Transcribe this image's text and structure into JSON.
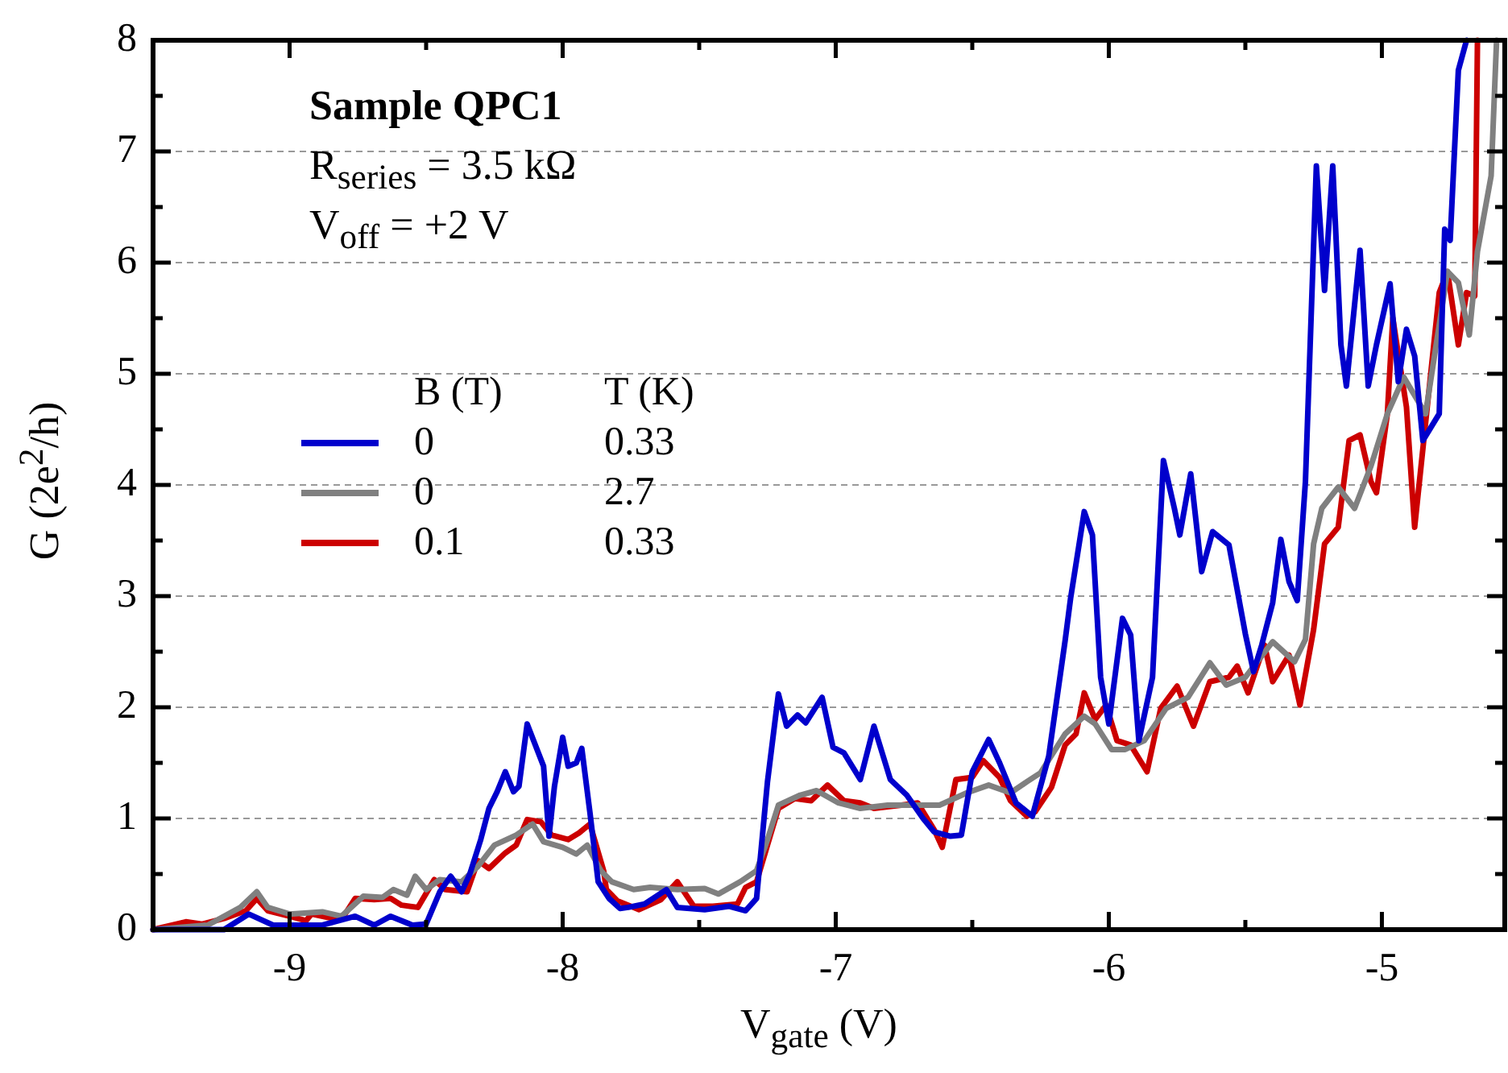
{
  "chart_data": {
    "type": "line",
    "xlabel": "V$_{gate}$ (V)",
    "ylabel": "G (2e$^{2}$/h)",
    "legend_title": "B (T)\tT (K)",
    "legend": "left",
    "grid": "y",
    "marker": "none",
    "line_style": "solid",
    "annotations": [
      "Sample QPC1",
      "R$_{series}$ = 3.5 kΩ",
      "V$_{off}$ = +2 V"
    ],
    "xlim": [
      -9.5,
      -4.55
    ],
    "ylim": [
      0,
      8
    ],
    "xticks": [
      {
        "value": -9.5,
        "label": null
      },
      -9,
      {
        "value": -8.5,
        "label": null
      },
      -8,
      {
        "value": -7.5,
        "label": null
      },
      -7,
      {
        "value": -6.5,
        "label": null
      },
      -6,
      {
        "value": -5.5,
        "label": null
      },
      -5
    ],
    "yticks": [
      0,
      {
        "value": 0.5,
        "label": null
      },
      1,
      {
        "value": 1.5,
        "label": null
      },
      2,
      {
        "value": 2.5,
        "label": null
      },
      3,
      {
        "value": 3.5,
        "label": null
      },
      4,
      {
        "value": 4.5,
        "label": null
      },
      5,
      {
        "value": 5.5,
        "label": null
      },
      6,
      {
        "value": 6.5,
        "label": null
      },
      7,
      {
        "value": 7.5,
        "label": null
      },
      8
    ],
    "series": [
      {
        "name": "0\t0.33",
        "color": "#0000cc",
        "x": [
          -9.5,
          -9.24,
          -9.15,
          -9.06,
          -8.88,
          -8.76,
          -8.69,
          -8.63,
          -8.55,
          -8.5,
          -8.45,
          -8.41,
          -8.37,
          -8.34,
          -8.3,
          -8.27,
          -8.24,
          -8.21,
          -8.18,
          -8.16,
          -8.13,
          -8.1,
          -8.07,
          -8.05,
          -8.03,
          -8.0,
          -7.98,
          -7.95,
          -7.93,
          -7.9,
          -7.87,
          -7.83,
          -7.79,
          -7.76,
          -7.7,
          -7.62,
          -7.58,
          -7.48,
          -7.39,
          -7.33,
          -7.29,
          -7.25,
          -7.21,
          -7.18,
          -7.14,
          -7.11,
          -7.05,
          -7.01,
          -6.97,
          -6.91,
          -6.86,
          -6.8,
          -6.74,
          -6.68,
          -6.64,
          -6.58,
          -6.54,
          -6.5,
          -6.44,
          -6.4,
          -6.34,
          -6.28,
          -6.22,
          -6.16,
          -6.14,
          -6.09,
          -6.06,
          -6.03,
          -6.0,
          -5.95,
          -5.92,
          -5.89,
          -5.84,
          -5.8,
          -5.76,
          -5.74,
          -5.7,
          -5.66,
          -5.62,
          -5.56,
          -5.5,
          -5.47,
          -5.44,
          -5.4,
          -5.37,
          -5.34,
          -5.31,
          -5.28,
          -5.24,
          -5.21,
          -5.18,
          -5.15,
          -5.13,
          -5.08,
          -5.05,
          -5.02,
          -4.97,
          -4.94,
          -4.91,
          -4.88,
          -4.85,
          -4.79,
          -4.77,
          -4.75,
          -4.72,
          -4.69
        ],
        "values": [
          0,
          0,
          0.14,
          0.04,
          0.04,
          0.12,
          0.04,
          0.12,
          0.04,
          0.05,
          0.34,
          0.48,
          0.34,
          0.5,
          0.81,
          1.09,
          1.24,
          1.42,
          1.24,
          1.29,
          1.85,
          1.66,
          1.47,
          0.84,
          1.29,
          1.73,
          1.47,
          1.5,
          1.63,
          1.05,
          0.43,
          0.28,
          0.19,
          0.2,
          0.23,
          0.36,
          0.2,
          0.18,
          0.21,
          0.17,
          0.28,
          1.33,
          2.12,
          1.83,
          1.93,
          1.86,
          2.09,
          1.64,
          1.59,
          1.35,
          1.83,
          1.35,
          1.21,
          1.0,
          0.88,
          0.84,
          0.85,
          1.42,
          1.71,
          1.5,
          1.14,
          1.02,
          1.56,
          2.6,
          2.98,
          3.76,
          3.55,
          2.27,
          1.85,
          2.8,
          2.65,
          1.7,
          2.27,
          4.22,
          3.79,
          3.55,
          4.1,
          3.22,
          3.58,
          3.46,
          2.66,
          2.32,
          2.56,
          2.94,
          3.51,
          3.13,
          2.96,
          4.03,
          6.87,
          5.75,
          6.87,
          5.26,
          4.89,
          6.11,
          4.89,
          5.26,
          5.81,
          4.93,
          5.4,
          5.16,
          4.4,
          4.64,
          6.3,
          6.2,
          7.73,
          8.0
        ]
      },
      {
        "name": "0\t2.7",
        "color": "#808080",
        "x": [
          -9.5,
          -9.3,
          -9.18,
          -9.12,
          -9.08,
          -9.0,
          -8.88,
          -8.81,
          -8.73,
          -8.66,
          -8.62,
          -8.57,
          -8.54,
          -8.5,
          -8.45,
          -8.37,
          -8.31,
          -8.25,
          -8.17,
          -8.11,
          -8.07,
          -8.0,
          -7.95,
          -7.91,
          -7.86,
          -7.82,
          -7.74,
          -7.68,
          -7.58,
          -7.48,
          -7.43,
          -7.35,
          -7.29,
          -7.25,
          -7.21,
          -7.13,
          -7.07,
          -6.99,
          -6.91,
          -6.81,
          -6.7,
          -6.62,
          -6.52,
          -6.44,
          -6.36,
          -6.3,
          -6.25,
          -6.16,
          -6.09,
          -6.05,
          -5.99,
          -5.94,
          -5.87,
          -5.79,
          -5.71,
          -5.63,
          -5.57,
          -5.5,
          -5.4,
          -5.32,
          -5.28,
          -5.25,
          -5.22,
          -5.16,
          -5.1,
          -5.04,
          -4.98,
          -4.92,
          -4.84,
          -4.76,
          -4.72,
          -4.68,
          -4.65,
          -4.6,
          -4.58
        ],
        "values": [
          0,
          0.04,
          0.2,
          0.34,
          0.2,
          0.14,
          0.16,
          0.12,
          0.3,
          0.29,
          0.36,
          0.31,
          0.48,
          0.36,
          0.45,
          0.43,
          0.57,
          0.76,
          0.85,
          0.95,
          0.79,
          0.74,
          0.68,
          0.76,
          0.53,
          0.43,
          0.36,
          0.38,
          0.36,
          0.37,
          0.32,
          0.43,
          0.53,
          0.81,
          1.12,
          1.21,
          1.25,
          1.14,
          1.09,
          1.12,
          1.12,
          1.12,
          1.23,
          1.3,
          1.23,
          1.33,
          1.41,
          1.76,
          1.92,
          1.85,
          1.62,
          1.62,
          1.7,
          1.99,
          2.09,
          2.4,
          2.2,
          2.27,
          2.59,
          2.41,
          2.61,
          3.47,
          3.79,
          3.98,
          3.79,
          4.17,
          4.64,
          4.97,
          4.64,
          5.92,
          5.82,
          5.35,
          6.1,
          6.78,
          8.0
        ]
      },
      {
        "name": "0.1\t0.33",
        "color": "#cc0000",
        "x": [
          -9.5,
          -9.38,
          -9.32,
          -9.24,
          -9.16,
          -9.12,
          -9.08,
          -9.0,
          -8.94,
          -8.92,
          -8.84,
          -8.81,
          -8.76,
          -8.69,
          -8.63,
          -8.59,
          -8.53,
          -8.47,
          -8.43,
          -8.35,
          -8.31,
          -8.27,
          -8.21,
          -8.17,
          -8.13,
          -8.08,
          -8.04,
          -7.98,
          -7.94,
          -7.9,
          -7.85,
          -7.84,
          -7.8,
          -7.72,
          -7.64,
          -7.58,
          -7.52,
          -7.45,
          -7.36,
          -7.33,
          -7.29,
          -7.25,
          -7.21,
          -7.15,
          -7.09,
          -7.03,
          -6.97,
          -6.91,
          -6.86,
          -6.76,
          -6.7,
          -6.64,
          -6.61,
          -6.56,
          -6.5,
          -6.46,
          -6.4,
          -6.36,
          -6.3,
          -6.27,
          -6.21,
          -6.16,
          -6.12,
          -6.09,
          -6.05,
          -6.01,
          -5.97,
          -5.92,
          -5.86,
          -5.81,
          -5.75,
          -5.69,
          -5.63,
          -5.56,
          -5.53,
          -5.49,
          -5.43,
          -5.4,
          -5.34,
          -5.3,
          -5.25,
          -5.21,
          -5.16,
          -5.12,
          -5.08,
          -5.04,
          -5.02,
          -4.98,
          -4.96,
          -4.91,
          -4.88,
          -4.79,
          -4.76,
          -4.72,
          -4.69,
          -4.66,
          -4.65
        ],
        "values": [
          0,
          0.07,
          0.05,
          0.1,
          0.17,
          0.28,
          0.17,
          0.12,
          0.08,
          0.14,
          0.1,
          0.09,
          0.28,
          0.27,
          0.28,
          0.22,
          0.2,
          0.45,
          0.36,
          0.34,
          0.62,
          0.55,
          0.69,
          0.76,
          0.99,
          0.97,
          0.85,
          0.81,
          0.87,
          0.95,
          0.53,
          0.36,
          0.26,
          0.18,
          0.27,
          0.43,
          0.21,
          0.21,
          0.23,
          0.38,
          0.43,
          0.76,
          1.09,
          1.18,
          1.16,
          1.3,
          1.16,
          1.14,
          1.09,
          1.12,
          1.14,
          0.9,
          0.74,
          1.35,
          1.37,
          1.52,
          1.37,
          1.16,
          1.02,
          1.06,
          1.28,
          1.66,
          1.76,
          2.13,
          1.89,
          2.02,
          1.7,
          1.66,
          1.42,
          1.99,
          2.19,
          1.83,
          2.23,
          2.27,
          2.37,
          2.13,
          2.56,
          2.23,
          2.47,
          2.02,
          2.7,
          3.47,
          3.62,
          4.4,
          4.45,
          4.03,
          3.93,
          4.64,
          5.5,
          4.7,
          3.62,
          5.73,
          5.92,
          5.26,
          5.73,
          5.7,
          8.0
        ]
      }
    ]
  }
}
